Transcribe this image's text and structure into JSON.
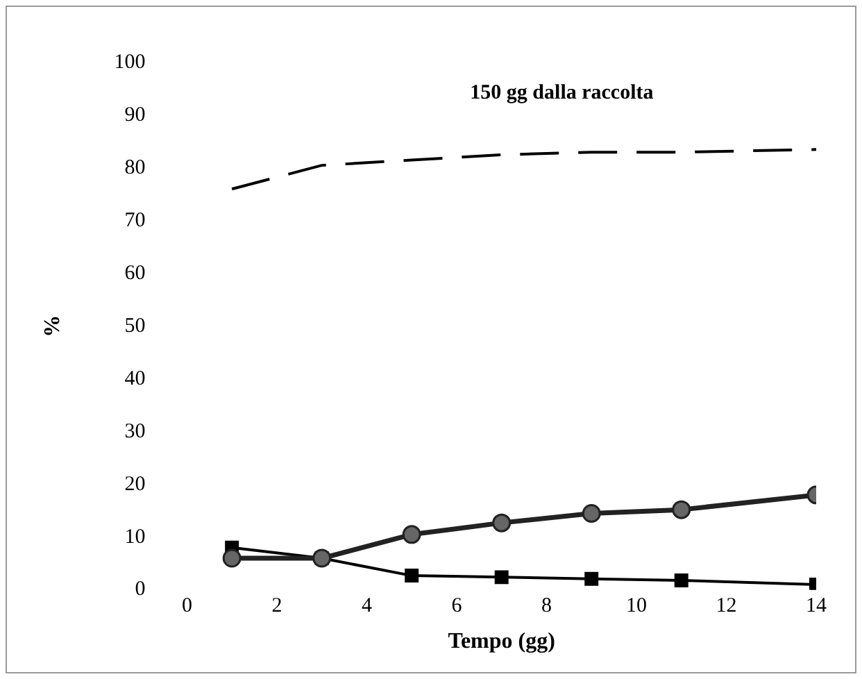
{
  "chart_data": {
    "type": "line",
    "xlabel": "Tempo (gg)",
    "ylabel": "%",
    "x": [
      1,
      3,
      5,
      7,
      9,
      11,
      14
    ],
    "series": [
      {
        "color": "#222222",
        "marker": "circle",
        "line_style": "solid",
        "values": [
          6,
          6,
          10.5,
          12.7,
          14.5,
          15.2,
          18
        ]
      },
      {
        "color": "#000000",
        "marker": "square",
        "line_style": "solid",
        "values": [
          8,
          6,
          2.7,
          2.4,
          2.1,
          1.8,
          1
        ]
      },
      {
        "color": "#000000",
        "marker": "none",
        "line_style": "dashed",
        "values": [
          76,
          80.5,
          81.5,
          82.5,
          83,
          83,
          83.5
        ]
      }
    ],
    "annotations": [
      "150 gg dalla raccolta"
    ],
    "xlim": [
      0,
      14
    ],
    "xticks": [
      0,
      2,
      4,
      6,
      8,
      10,
      12,
      14
    ],
    "ylim": [
      0,
      100
    ],
    "yticks": [
      0,
      10,
      20,
      30,
      40,
      50,
      60,
      70,
      80,
      90,
      100
    ],
    "grid": false,
    "legend": false
  }
}
